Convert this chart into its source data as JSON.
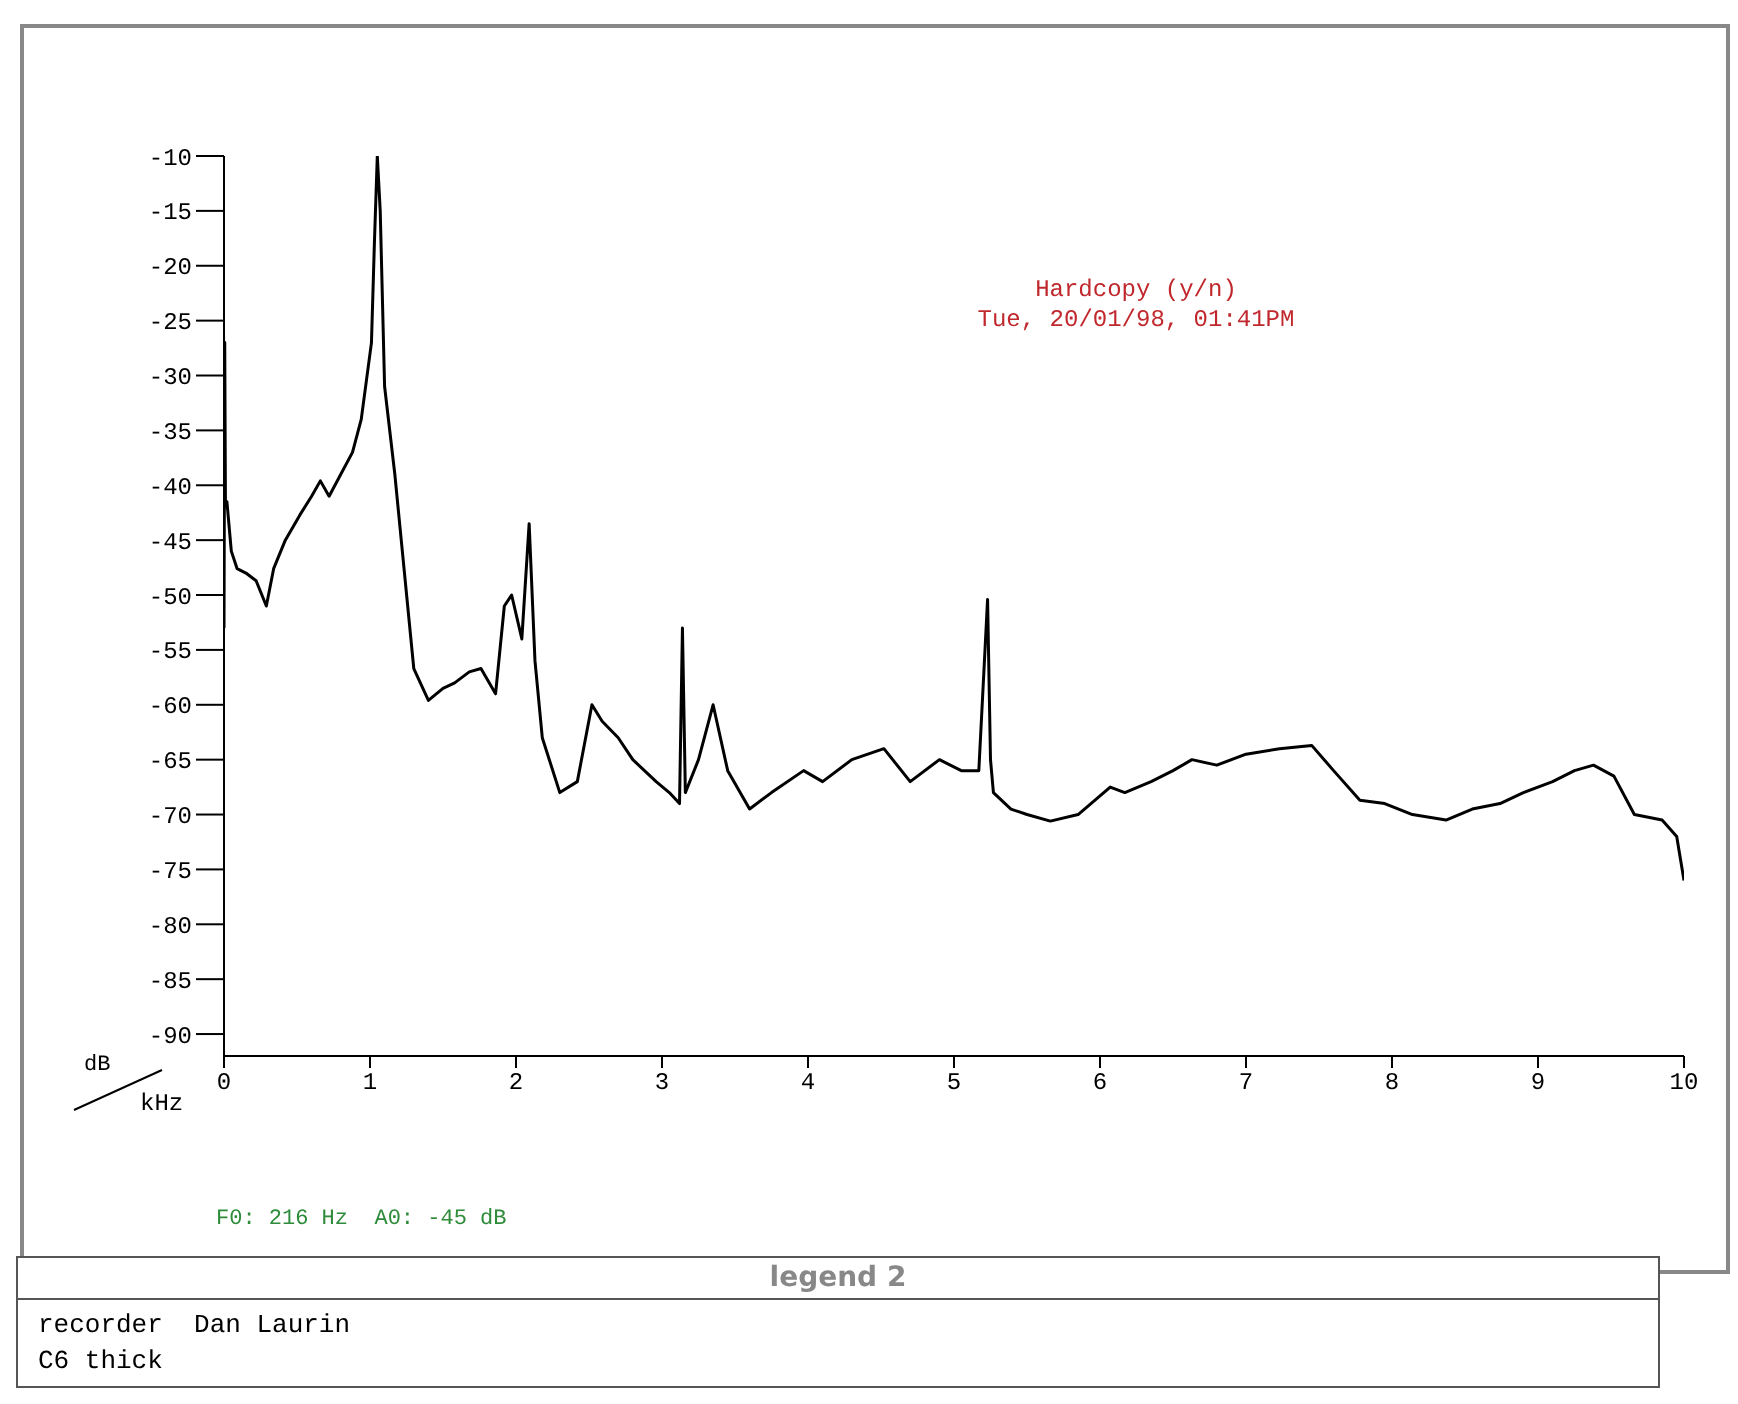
{
  "chart_data": {
    "type": "line",
    "xlabel": "kHz",
    "ylabel": "dB",
    "annotations": [
      "Hardcopy (y/n)",
      "Tue, 20/01/98, 01:41PM",
      "F0: 216 Hz  A0: -45 dB",
      "legend 2",
      "recorder  Dan Laurin",
      "C6 thick"
    ],
    "xlim": [
      0,
      10
    ],
    "xticks": [
      0,
      1,
      2,
      3,
      4,
      5,
      6,
      7,
      8,
      9,
      10
    ],
    "ylim": [
      -92,
      -10
    ],
    "yticks": [
      -10,
      -15,
      -20,
      -25,
      -30,
      -35,
      -40,
      -45,
      -50,
      -55,
      -60,
      -65,
      -70,
      -75,
      -80,
      -85,
      -90
    ],
    "marker": "none",
    "line_style": "solid",
    "series": [
      {
        "color": "#000000",
        "x": [
          0,
          0.005,
          0.01,
          0.02,
          0.05,
          0.09,
          0.15,
          0.22,
          0.29,
          0.34,
          0.42,
          0.52,
          0.6,
          0.66,
          0.72,
          0.8,
          0.88,
          0.94,
          1.01,
          1.03,
          1.05,
          1.07,
          1.1,
          1.17,
          1.3,
          1.4,
          1.5,
          1.58,
          1.68,
          1.76,
          1.86,
          1.92,
          1.97,
          2.04,
          2.09,
          2.13,
          2.18,
          2.3,
          2.42,
          2.52,
          2.59,
          2.7,
          2.8,
          2.96,
          3.05,
          3.12,
          3.14,
          3.16,
          3.25,
          3.35,
          3.45,
          3.6,
          3.75,
          3.97,
          4.1,
          4.3,
          4.52,
          4.7,
          4.9,
          5.05,
          5.17,
          5.23,
          5.25,
          5.27,
          5.39,
          5.5,
          5.66,
          5.85,
          6.07,
          6.17,
          6.35,
          6.5,
          6.63,
          6.8,
          7.0,
          7.23,
          7.45,
          7.6,
          7.78,
          7.95,
          8.14,
          8.37,
          8.55,
          8.74,
          8.9,
          9.1,
          9.25,
          9.38,
          9.52,
          9.66,
          9.85,
          9.95,
          10
        ],
        "values": [
          -53,
          -27,
          -42,
          -41.5,
          -46,
          -47.6,
          -48,
          -48.7,
          -51,
          -47.6,
          -45,
          -42.7,
          -41,
          -39.6,
          -41,
          -39,
          -37,
          -34,
          -27,
          -18,
          -10,
          -15,
          -31,
          -39,
          -56.7,
          -59.6,
          -58.5,
          -58,
          -57,
          -56.7,
          -59,
          -51,
          -50,
          -54,
          -43.5,
          -56,
          -63,
          -68,
          -67,
          -60,
          -61.5,
          -63,
          -65,
          -67,
          -68,
          -69,
          -53,
          -68,
          -65,
          -60,
          -66,
          -69.5,
          -68,
          -66,
          -67,
          -65,
          -64,
          -67,
          -65,
          -66,
          -66,
          -50.4,
          -65,
          -68,
          -69.5,
          -70,
          -70.6,
          -70,
          -67.5,
          -68,
          -67,
          -66,
          -65,
          -65.5,
          -64.5,
          -64,
          -63.7,
          -66,
          -68.7,
          -69,
          -70,
          -70.5,
          -69.5,
          -69,
          -68,
          -67,
          -66,
          -65.5,
          -66.5,
          -70,
          -70.5,
          -72,
          -76
        ]
      }
    ]
  }
}
